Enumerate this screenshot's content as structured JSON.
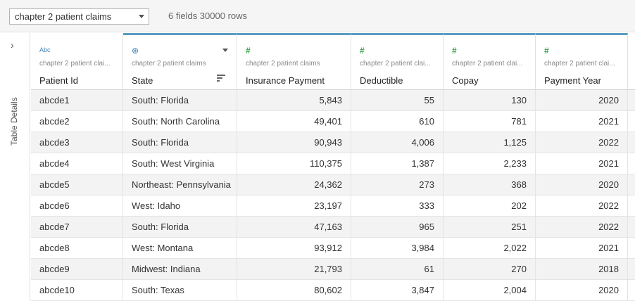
{
  "toolbar": {
    "datasource": "chapter 2 patient claims",
    "summary": "6 fields 30000 rows"
  },
  "side_panel": {
    "expand_glyph": "›",
    "label": "Table Details"
  },
  "columns": [
    {
      "type_icon": "Abc",
      "icon_name": "text-type-icon",
      "source": "chapter 2 patient clai...",
      "name": "Patient Id",
      "align": "left"
    },
    {
      "type_icon": "⊕",
      "icon_name": "geographic-type-icon",
      "source": "chapter 2 patient claims",
      "name": "State",
      "align": "left"
    },
    {
      "type_icon": "#",
      "icon_name": "number-type-icon",
      "source": "chapter 2 patient claims",
      "name": "Insurance Payment",
      "align": "right"
    },
    {
      "type_icon": "#",
      "icon_name": "number-type-icon",
      "source": "chapter 2 patient clai...",
      "name": "Deductible",
      "align": "right"
    },
    {
      "type_icon": "#",
      "icon_name": "number-type-icon",
      "source": "chapter 2 patient clai...",
      "name": "Copay",
      "align": "right"
    },
    {
      "type_icon": "#",
      "icon_name": "number-type-icon",
      "source": "chapter 2 patient clai...",
      "name": "Payment Year",
      "align": "right"
    }
  ],
  "rows": [
    [
      "abcde1",
      "South: Florida",
      "5,843",
      "55",
      "130",
      "2020"
    ],
    [
      "abcde2",
      "South: North Carolina",
      "49,401",
      "610",
      "781",
      "2021"
    ],
    [
      "abcde3",
      "South: Florida",
      "90,943",
      "4,006",
      "1,125",
      "2022"
    ],
    [
      "abcde4",
      "South: West Virginia",
      "110,375",
      "1,387",
      "2,233",
      "2021"
    ],
    [
      "abcde5",
      "Northeast: Pennsylvania",
      "24,362",
      "273",
      "368",
      "2020"
    ],
    [
      "abcde6",
      "West: Idaho",
      "23,197",
      "333",
      "202",
      "2022"
    ],
    [
      "abcde7",
      "South: Florida",
      "47,163",
      "965",
      "251",
      "2022"
    ],
    [
      "abcde8",
      "West: Montana",
      "93,912",
      "3,984",
      "2,022",
      "2021"
    ],
    [
      "abcde9",
      "Midwest: Indiana",
      "21,793",
      "61",
      "270",
      "2018"
    ],
    [
      "abcde10",
      "South: Texas",
      "80,602",
      "3,847",
      "2,004",
      "2020"
    ]
  ],
  "colors": {
    "accent": "#5b9bc2",
    "number_icon": "#3ca34a",
    "text_icon": "#3f80b3"
  }
}
